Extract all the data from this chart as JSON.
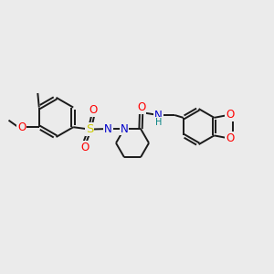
{
  "bg_color": "#ebebeb",
  "bond_color": "#1a1a1a",
  "bond_lw": 1.4,
  "atom_colors": {
    "O": "#ff0000",
    "N": "#0000cc",
    "S": "#cccc00",
    "H": "#008080",
    "C": "#1a1a1a"
  },
  "fs": 8.5,
  "fs_small": 7.0
}
